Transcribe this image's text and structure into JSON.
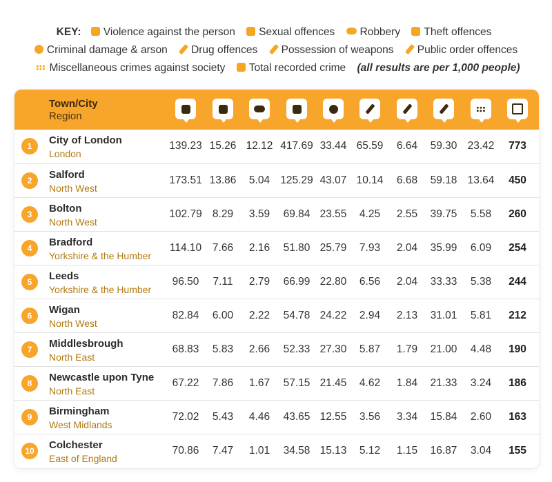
{
  "key": {
    "title": "KEY:",
    "items": [
      {
        "icon": "fist-icon",
        "label": "Violence against the person"
      },
      {
        "icon": "hand-icon",
        "label": "Sexual offences"
      },
      {
        "icon": "mask-icon",
        "label": "Robbery"
      },
      {
        "icon": "bag-icon",
        "label": "Theft offences"
      },
      {
        "icon": "fire-icon",
        "label": "Criminal damage & arson"
      },
      {
        "icon": "syringe-icon",
        "label": "Drug offences"
      },
      {
        "icon": "knife-icon",
        "label": "Possession of weapons"
      },
      {
        "icon": "gavel-icon",
        "label": "Public order offences"
      },
      {
        "icon": "dots-icon",
        "label": "Miscellaneous crimes against society"
      },
      {
        "icon": "chart-icon",
        "label": "Total recorded crime"
      }
    ],
    "note": "(all results are per 1,000 people)"
  },
  "accent_color": "#f7a52b",
  "chart_data": {
    "type": "table",
    "header": {
      "town": "Town/City",
      "region": "Region"
    },
    "columns": [
      {
        "icon": "fist-icon",
        "key": "Violence against the person"
      },
      {
        "icon": "hand-icon",
        "key": "Sexual offences"
      },
      {
        "icon": "mask-icon",
        "key": "Robbery"
      },
      {
        "icon": "bag-icon",
        "key": "Theft offences"
      },
      {
        "icon": "fire-icon",
        "key": "Criminal damage & arson"
      },
      {
        "icon": "syringe-icon",
        "key": "Drug offences"
      },
      {
        "icon": "knife-icon",
        "key": "Possession of weapons"
      },
      {
        "icon": "gavel-icon",
        "key": "Public order offences"
      },
      {
        "icon": "dots-icon",
        "key": "Miscellaneous crimes against society"
      },
      {
        "icon": "chart-icon",
        "key": "Total recorded crime"
      }
    ],
    "rows": [
      {
        "rank": "1",
        "town": "City of London",
        "region": "London",
        "values": [
          "139.23",
          "15.26",
          "12.12",
          "417.69",
          "33.44",
          "65.59",
          "6.64",
          "59.30",
          "23.42",
          "773"
        ]
      },
      {
        "rank": "2",
        "town": "Salford",
        "region": "North West",
        "values": [
          "173.51",
          "13.86",
          "5.04",
          "125.29",
          "43.07",
          "10.14",
          "6.68",
          "59.18",
          "13.64",
          "450"
        ]
      },
      {
        "rank": "3",
        "town": "Bolton",
        "region": "North West",
        "values": [
          "102.79",
          "8.29",
          "3.59",
          "69.84",
          "23.55",
          "4.25",
          "2.55",
          "39.75",
          "5.58",
          "260"
        ]
      },
      {
        "rank": "4",
        "town": "Bradford",
        "region": "Yorkshire & the Humber",
        "values": [
          "114.10",
          "7.66",
          "2.16",
          "51.80",
          "25.79",
          "7.93",
          "2.04",
          "35.99",
          "6.09",
          "254"
        ]
      },
      {
        "rank": "5",
        "town": "Leeds",
        "region": "Yorkshire & the Humber",
        "values": [
          "96.50",
          "7.11",
          "2.79",
          "66.99",
          "22.80",
          "6.56",
          "2.04",
          "33.33",
          "5.38",
          "244"
        ]
      },
      {
        "rank": "6",
        "town": "Wigan",
        "region": "North West",
        "values": [
          "82.84",
          "6.00",
          "2.22",
          "54.78",
          "24.22",
          "2.94",
          "2.13",
          "31.01",
          "5.81",
          "212"
        ]
      },
      {
        "rank": "7",
        "town": "Middlesbrough",
        "region": "North East",
        "values": [
          "68.83",
          "5.83",
          "2.66",
          "52.33",
          "27.30",
          "5.87",
          "1.79",
          "21.00",
          "4.48",
          "190"
        ]
      },
      {
        "rank": "8",
        "town": "Newcastle upon Tyne",
        "region": "North East",
        "values": [
          "67.22",
          "7.86",
          "1.67",
          "57.15",
          "21.45",
          "4.62",
          "1.84",
          "21.33",
          "3.24",
          "186"
        ]
      },
      {
        "rank": "9",
        "town": "Birmingham",
        "region": "West Midlands",
        "values": [
          "72.02",
          "5.43",
          "4.46",
          "43.65",
          "12.55",
          "3.56",
          "3.34",
          "15.84",
          "2.60",
          "163"
        ]
      },
      {
        "rank": "10",
        "town": "Colchester",
        "region": "East of England",
        "values": [
          "70.86",
          "7.47",
          "1.01",
          "34.58",
          "15.13",
          "5.12",
          "1.15",
          "16.87",
          "3.04",
          "155"
        ]
      }
    ]
  }
}
